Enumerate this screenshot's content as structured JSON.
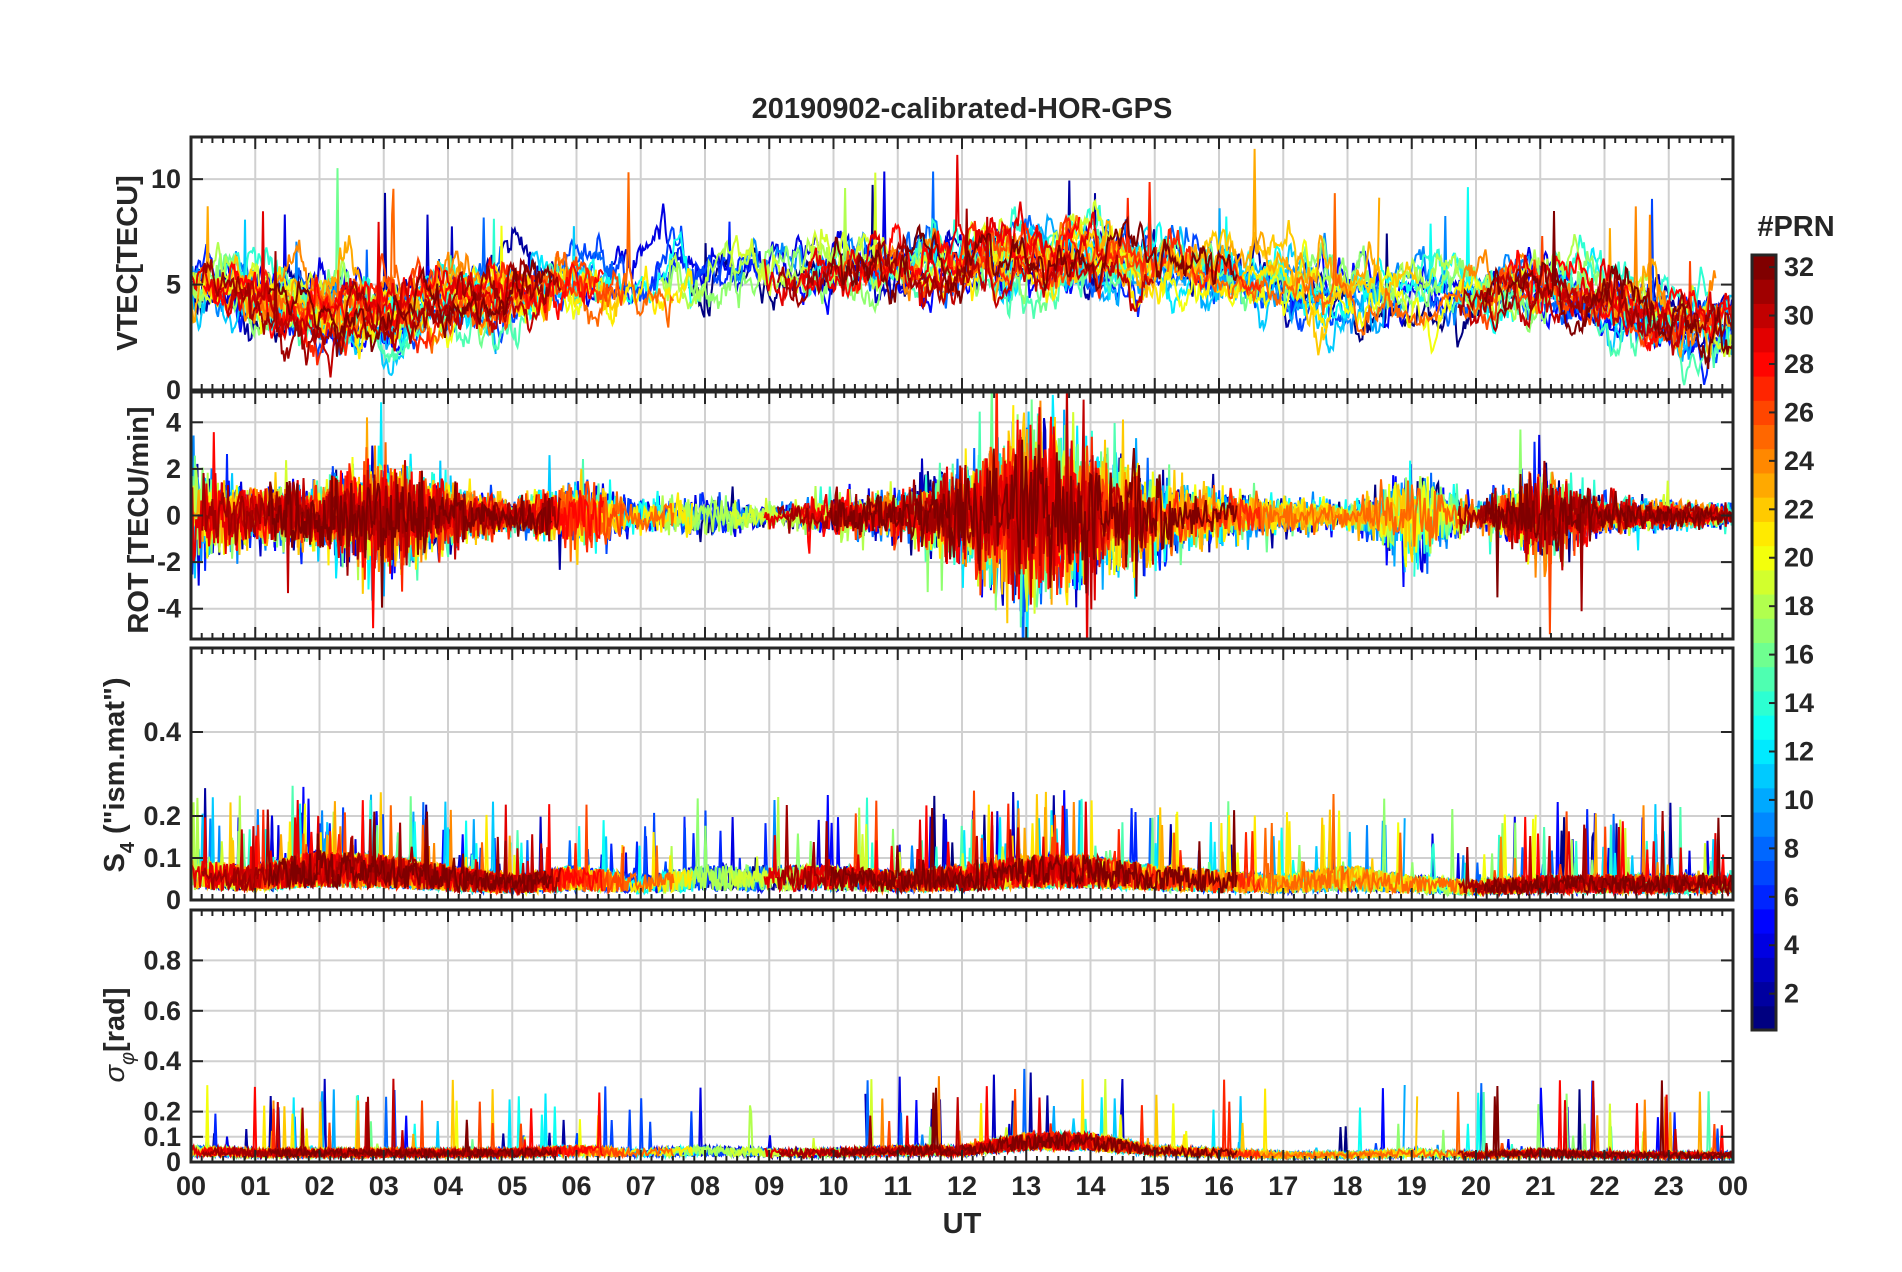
{
  "chart_data": {
    "type": "line",
    "title": "20190902-calibrated-HOR-GPS",
    "xlabel": "UT",
    "x_tick_labels": [
      "00",
      "01",
      "02",
      "03",
      "04",
      "05",
      "06",
      "07",
      "08",
      "09",
      "10",
      "11",
      "12",
      "13",
      "14",
      "15",
      "16",
      "17",
      "18",
      "19",
      "20",
      "21",
      "22",
      "23",
      "00"
    ],
    "xlim": [
      0,
      24
    ],
    "colorbar": {
      "title": "#PRN",
      "range": [
        1,
        32
      ],
      "tick_labels": [
        "2",
        "4",
        "6",
        "8",
        "10",
        "12",
        "14",
        "16",
        "18",
        "20",
        "22",
        "24",
        "26",
        "28",
        "30",
        "32"
      ],
      "colormap": "jet"
    },
    "panels": [
      {
        "name": "vtec",
        "ylabel": "VTEC[TECU]",
        "ylim": [
          0,
          12
        ],
        "y_ticks": [
          0,
          5,
          10
        ],
        "y_tick_labels": [
          "0",
          "5",
          "10"
        ],
        "description_values": {
          "baseline_by_hour": [
            4.8,
            4.5,
            3.8,
            3.8,
            4.2,
            4.5,
            5.0,
            5.2,
            5.4,
            5.2,
            5.5,
            5.8,
            6.0,
            6.2,
            6.3,
            6.2,
            5.8,
            5.2,
            4.5,
            4.4,
            4.6,
            5.0,
            4.2,
            3.4,
            2.8
          ]
        }
      },
      {
        "name": "rot",
        "ylabel": "ROT [TECU/min]",
        "ylim": [
          -5.3,
          5.3
        ],
        "y_ticks": [
          -4,
          -2,
          0,
          2,
          4
        ],
        "y_tick_labels": [
          "-4",
          "-2",
          "0",
          "2",
          "4"
        ],
        "description_values": {
          "amplitude_by_hour": [
            1.4,
            0.8,
            0.9,
            1.5,
            0.9,
            0.4,
            1.0,
            0.5,
            0.6,
            0.3,
            0.6,
            0.7,
            1.5,
            2.5,
            2.0,
            1.2,
            0.7,
            0.5,
            0.3,
            1.4,
            0.3,
            1.4,
            0.5,
            0.4,
            0.3
          ]
        }
      },
      {
        "name": "s4",
        "ylabel": "S4 (\"ism.mat\")",
        "ylabel_main": "S",
        "ylabel_sub": "4",
        "ylabel_tail": " (\"ism.mat\")",
        "ylim": [
          0,
          0.6
        ],
        "y_ticks": [
          0,
          0.1,
          0.2,
          0.4
        ],
        "y_tick_labels": [
          "0",
          "0.1",
          "0.2",
          "0.4"
        ],
        "description_values": {
          "level_by_hour": [
            0.08,
            0.07,
            0.1,
            0.09,
            0.07,
            0.05,
            0.07,
            0.05,
            0.07,
            0.07,
            0.07,
            0.06,
            0.07,
            0.09,
            0.09,
            0.07,
            0.06,
            0.05,
            0.07,
            0.05,
            0.04,
            0.05,
            0.05,
            0.05,
            0.05
          ]
        }
      },
      {
        "name": "sigma_phi",
        "ylabel": "σφ[rad]",
        "ylabel_main": "σ",
        "ylabel_sub": "φ",
        "ylabel_tail": "[rad]",
        "ylim": [
          0,
          1
        ],
        "y_ticks": [
          0,
          0.1,
          0.2,
          0.4,
          0.6,
          0.8
        ],
        "y_tick_labels": [
          "0",
          "0.1",
          "0.2",
          "0.4",
          "0.6",
          "0.8"
        ],
        "description_values": {
          "level_by_hour": [
            0.05,
            0.04,
            0.04,
            0.04,
            0.04,
            0.04,
            0.05,
            0.04,
            0.05,
            0.04,
            0.04,
            0.05,
            0.05,
            0.09,
            0.09,
            0.05,
            0.04,
            0.03,
            0.03,
            0.04,
            0.03,
            0.04,
            0.03,
            0.03,
            0.03
          ]
        }
      }
    ]
  }
}
